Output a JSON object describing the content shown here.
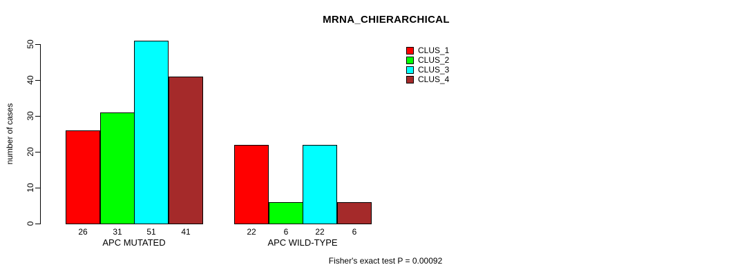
{
  "figure": {
    "title": "MRNA_CHIERARCHICAL",
    "background_color": "#ffffff",
    "text_color": "#000000"
  },
  "chart_data": {
    "type": "bar",
    "title": "MRNA_CHIERARCHICAL",
    "categories": [
      "APC MUTATED",
      "APC WILD-TYPE"
    ],
    "series": [
      {
        "name": "CLUS_1",
        "color": "#ff0000",
        "values": [
          26,
          22
        ]
      },
      {
        "name": "CLUS_2",
        "color": "#00ff00",
        "values": [
          31,
          6
        ]
      },
      {
        "name": "CLUS_3",
        "color": "#00ffff",
        "values": [
          51,
          22
        ]
      },
      {
        "name": "CLUS_4",
        "color": "#a52a2a",
        "values": [
          41,
          6
        ]
      }
    ],
    "bar_value_labels": [
      [
        "26",
        "31",
        "51",
        "41"
      ],
      [
        "22",
        "6",
        "22",
        "6"
      ]
    ],
    "xlabel": "",
    "ylabel": "number of cases",
    "yticks": [
      0,
      10,
      20,
      30,
      40,
      50
    ],
    "ylim": [
      0,
      52
    ],
    "grid": false,
    "legend_position": "top-right",
    "legend_items": [
      {
        "label": "CLUS_1",
        "color": "#ff0000"
      },
      {
        "label": "CLUS_2",
        "color": "#00ff00"
      },
      {
        "label": "CLUS_3",
        "color": "#00ffff"
      },
      {
        "label": "CLUS_4",
        "color": "#a52a2a"
      }
    ],
    "annotation": "Fisher's exact test P = 0.00092"
  }
}
